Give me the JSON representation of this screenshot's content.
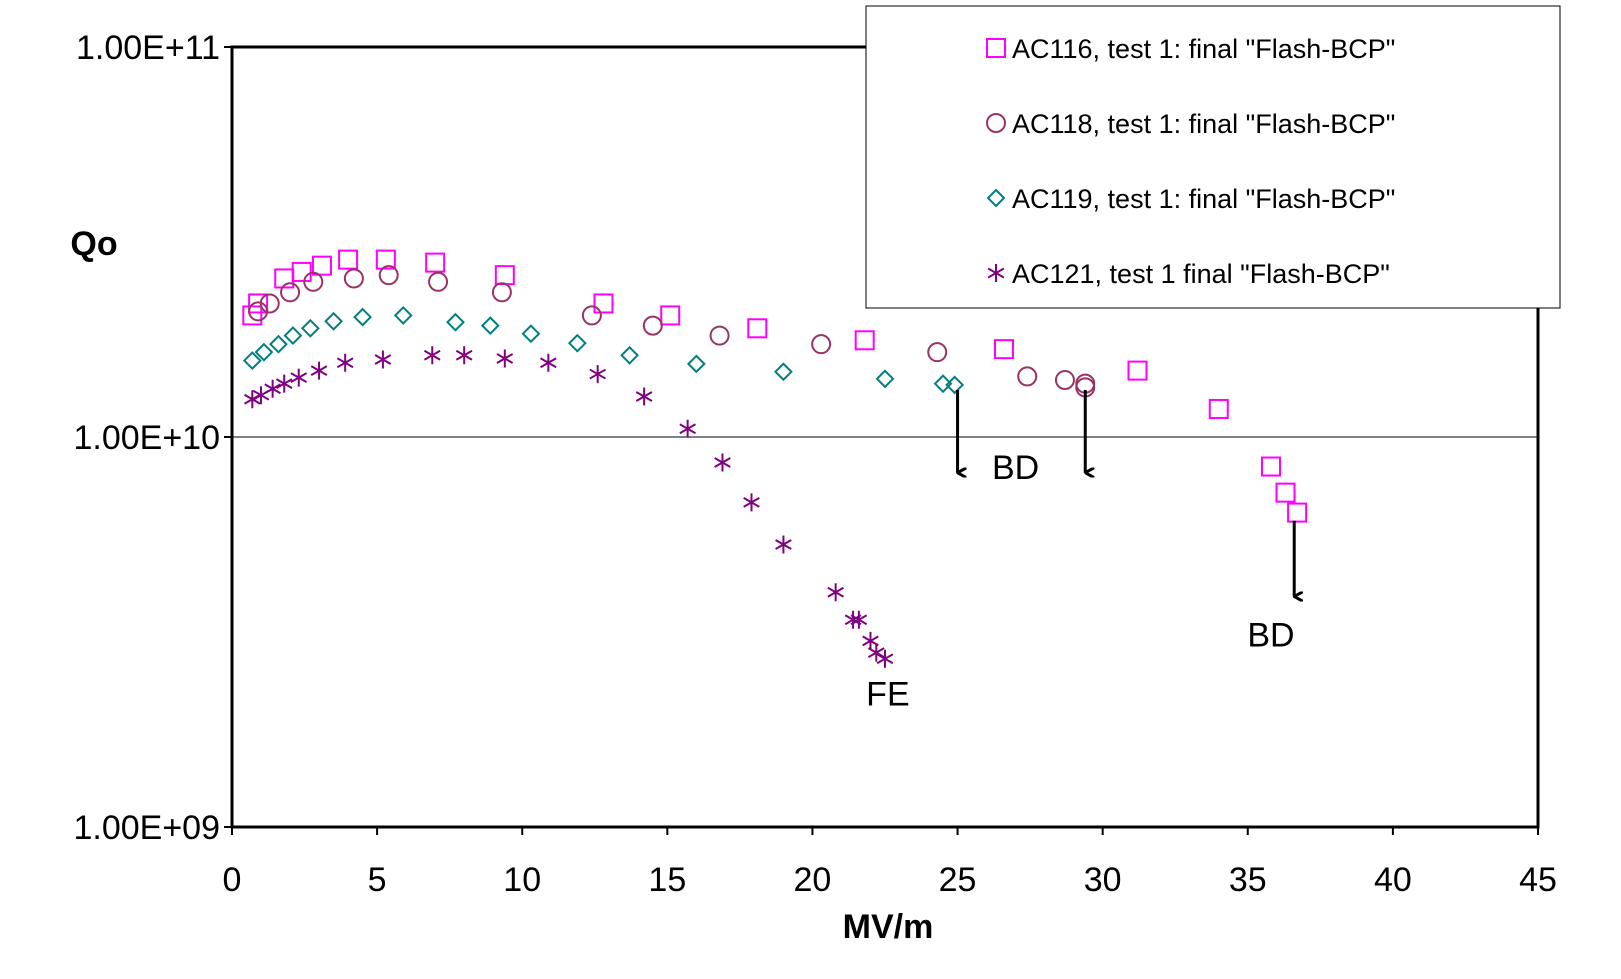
{
  "chart_data": {
    "type": "scatter",
    "title": "",
    "xlabel": "MV/m",
    "ylabel": "Qo",
    "x_scale": "linear",
    "y_scale": "log",
    "xlim": [
      0,
      45
    ],
    "ylim": [
      1000000000,
      100000000000
    ],
    "x_ticks": [
      0,
      5,
      10,
      15,
      20,
      25,
      30,
      35,
      40,
      45
    ],
    "x_tick_labels": [
      "0",
      "5",
      "10",
      "15",
      "20",
      "25",
      "30",
      "35",
      "40",
      "45"
    ],
    "y_ticks": [
      1000000000,
      10000000000,
      100000000000
    ],
    "y_tick_labels": [
      "1.00E+09",
      "1.00E+10",
      "1.00E+11"
    ],
    "grid": {
      "horizontal_major": true,
      "vertical": false
    },
    "legend_position": "top-right",
    "series": [
      {
        "name": "AC116, test 1: final \"Flash-BCP\"",
        "marker": "square",
        "color": "#ff00ff",
        "x": [
          0.7,
          0.9,
          1.8,
          2.4,
          3.1,
          4.0,
          5.3,
          7.0,
          9.4,
          12.8,
          15.1,
          18.1,
          21.8,
          26.6,
          31.2,
          34.0,
          35.8,
          36.3,
          36.7
        ],
        "y": [
          20500000000,
          22000000000,
          25500000000,
          26500000000,
          27500000000,
          28500000000,
          28500000000,
          28000000000,
          26000000000,
          22000000000,
          20500000000,
          19000000000,
          17700000000,
          16800000000,
          14800000000,
          11800000000,
          8400000000,
          7200000000,
          6400000000
        ]
      },
      {
        "name": "AC118, test 1: final \"Flash-BCP\"",
        "marker": "circle",
        "color": "#993366",
        "x": [
          0.9,
          1.3,
          2.0,
          2.8,
          4.2,
          5.4,
          7.1,
          9.3,
          12.4,
          14.5,
          16.8,
          20.3,
          24.3,
          27.4,
          28.7,
          29.4,
          29.4
        ],
        "y": [
          21000000000,
          22000000000,
          23500000000,
          25000000000,
          25500000000,
          26000000000,
          25000000000,
          23500000000,
          20500000000,
          19300000000,
          18200000000,
          17300000000,
          16500000000,
          14300000000,
          14000000000,
          13700000000,
          13400000000
        ]
      },
      {
        "name": "AC119, test 1: final \"Flash-BCP\"",
        "marker": "diamond",
        "color": "#008080",
        "x": [
          0.7,
          1.1,
          1.6,
          2.1,
          2.7,
          3.5,
          4.5,
          5.9,
          7.7,
          8.9,
          10.3,
          11.9,
          13.7,
          16.0,
          19.0,
          22.5,
          24.5,
          24.9
        ],
        "y": [
          15700000000,
          16500000000,
          17300000000,
          18200000000,
          19000000000,
          19800000000,
          20300000000,
          20500000000,
          19700000000,
          19300000000,
          18400000000,
          17400000000,
          16200000000,
          15400000000,
          14700000000,
          14100000000,
          13700000000,
          13600000000
        ]
      },
      {
        "name": "AC121, test 1 final \"Flash-BCP\"",
        "marker": "asterisk",
        "color": "#800080",
        "x": [
          0.7,
          1.0,
          1.4,
          1.8,
          2.3,
          3.0,
          3.9,
          5.2,
          6.9,
          8.0,
          9.4,
          10.9,
          12.6,
          14.2,
          15.7,
          16.9,
          17.9,
          19.0,
          20.8,
          21.4,
          21.6,
          22.0,
          22.2,
          22.5
        ],
        "y": [
          12500000000,
          12800000000,
          13300000000,
          13700000000,
          14200000000,
          14800000000,
          15500000000,
          15800000000,
          16200000000,
          16200000000,
          15900000000,
          15500000000,
          14500000000,
          12700000000,
          10500000000,
          8600000000,
          6800000000,
          5300000000,
          4000000000,
          3400000000,
          3400000000,
          3000000000,
          2800000000,
          2700000000
        ]
      }
    ],
    "annotations": [
      {
        "text": "BD",
        "x": 27.0,
        "y": 7800000000
      },
      {
        "text": "BD",
        "x": 35.8,
        "y": 2900000000
      },
      {
        "text": "FE",
        "x": 22.6,
        "y": 2050000000
      }
    ],
    "arrows": [
      {
        "x": 25.0,
        "y_start": 13200000000,
        "y_end": 8100000000
      },
      {
        "x": 29.4,
        "y_start": 13200000000,
        "y_end": 8100000000
      },
      {
        "x": 36.6,
        "y_start": 6100000000,
        "y_end": 3900000000
      }
    ]
  }
}
